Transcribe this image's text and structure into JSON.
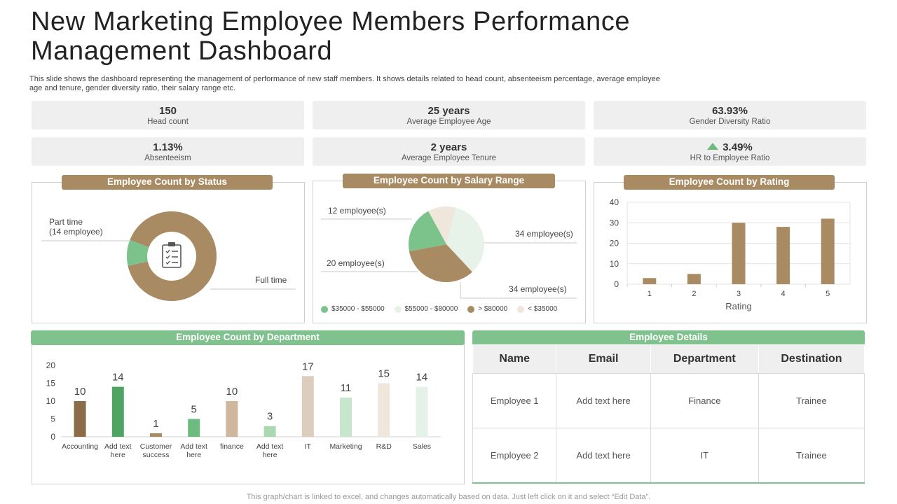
{
  "header": {
    "title_line1": "New Marketing Employee Members Performance",
    "title_line2": "Management Dashboard",
    "subtitle_line1": "This slide shows the dashboard representing the management of performance of new staff members. It shows details related to head count, absenteeism percentage, average employee",
    "subtitle_line2": "age and tenure, gender diversity ratio, their salary range etc."
  },
  "kpis": [
    {
      "value": "150",
      "label": "Head count"
    },
    {
      "value": "25 years",
      "label": "Average Employee Age"
    },
    {
      "value": "63.93%",
      "label": "Gender Diversity Ratio"
    },
    {
      "value": "1.13%",
      "label": "Absenteeism"
    },
    {
      "value": "2 years",
      "label": "Average Employee Tenure"
    },
    {
      "value": "3.49%",
      "label": "HR to Employee Ratio",
      "icon": "triangle-up-icon"
    }
  ],
  "status_chart": {
    "title": "Employee Count by Status",
    "part_time_line1": "Part time",
    "part_time_line2": "(14 employee)",
    "full_time": "Full time",
    "center_icon": "clipboard-icon"
  },
  "salary_chart": {
    "title": "Employee Count by Salary Range",
    "label_12": "12 employee(s)",
    "label_20": "20 employee(s)",
    "label_34a": "34 employee(s)",
    "label_34b": "34 employee(s)",
    "legend": [
      "$35000 - $55000",
      "$55000 - $80000",
      "> $80000",
      "< $35000"
    ]
  },
  "rating_chart": {
    "title": "Employee Count by Rating"
  },
  "department_chart": {
    "title": "Employee Count by Department"
  },
  "employee_details": {
    "title": "Employee Details",
    "columns": [
      "Name",
      "Email",
      "Department",
      "Destination"
    ],
    "rows": [
      [
        "Employee 1",
        "Add text here",
        "Finance",
        "Trainee"
      ],
      [
        "Employee 2",
        "Add text here",
        "IT",
        "Trainee"
      ]
    ]
  },
  "footer": {
    "note": "This graph/chart is linked to excel, and changes automatically based on data. Just left click on it and select “Edit Data”."
  },
  "colors": {
    "tan": "#a88b62",
    "dark_brown": "#8a6d48",
    "green": "#80c28e",
    "dark_green": "#4fa463",
    "pale_green": "#e7f3e9",
    "pale_beige": "#efe6dc"
  },
  "chart_data": [
    {
      "type": "pie",
      "title": "Employee Count by Status",
      "variant": "donut",
      "categories": [
        "Full time",
        "Part time"
      ],
      "values": [
        136,
        14
      ],
      "colors": [
        "#a88b62",
        "#7cc28b"
      ]
    },
    {
      "type": "pie",
      "title": "Employee Count by Salary Range",
      "categories": [
        "$35000 - $55000",
        "$55000 - $80000",
        "> $80000",
        "< $35000"
      ],
      "values": [
        20,
        34,
        34,
        12
      ],
      "colors": [
        "#7cc28b",
        "#e7f3e9",
        "#a88b62",
        "#efe6dc"
      ],
      "legend": "bottom"
    },
    {
      "type": "bar",
      "title": "Employee Count by Rating",
      "categories": [
        "1",
        "2",
        "3",
        "4",
        "5"
      ],
      "values": [
        3,
        5,
        30,
        28,
        32
      ],
      "xlabel": "Rating",
      "ylabel": "",
      "ylim": [
        0,
        40
      ],
      "yticks": [
        0,
        10,
        20,
        30,
        40
      ],
      "grid": true,
      "color": "#a88b62"
    },
    {
      "type": "bar",
      "title": "Employee Count by Department",
      "categories": [
        "Accounting",
        "Add text here",
        "Customer success",
        "Add text here",
        "finance",
        "Add text here",
        "IT",
        "Marketing",
        "R&D",
        "Sales"
      ],
      "category_lines": [
        [
          "Accounting"
        ],
        [
          "Add text",
          "here"
        ],
        [
          "Customer",
          "success"
        ],
        [
          "Add text",
          "here"
        ],
        [
          "finance"
        ],
        [
          "Add text",
          "here"
        ],
        [
          "IT"
        ],
        [
          "Marketing"
        ],
        [
          "R&D"
        ],
        [
          "Sales"
        ]
      ],
      "values": [
        10,
        14,
        1,
        5,
        10,
        3,
        17,
        11,
        15,
        14
      ],
      "colors": [
        "#8a6d48",
        "#4fa463",
        "#a88b62",
        "#6dbb7f",
        "#cdb89d",
        "#a9d8b2",
        "#dccdbd",
        "#c7e6cd",
        "#efe6dc",
        "#e4f2e7"
      ],
      "ylim": [
        0,
        20
      ],
      "yticks": [
        0,
        5,
        10,
        15,
        20
      ],
      "data_labels": true
    }
  ]
}
